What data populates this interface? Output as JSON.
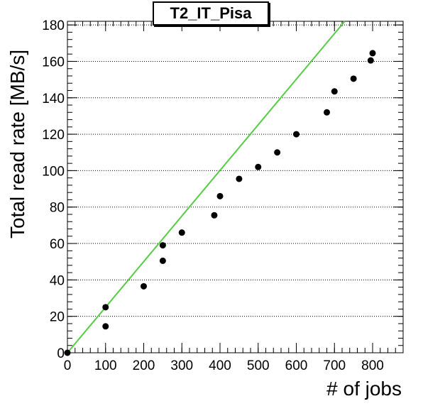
{
  "chart_data": {
    "type": "scatter",
    "title": "T2_IT_Pisa",
    "xlabel": "# of jobs",
    "ylabel": "Total read rate [MB/s]",
    "xlim": [
      0,
      880
    ],
    "ylim": [
      0,
      182
    ],
    "x_ticks": [
      0,
      100,
      200,
      300,
      400,
      500,
      600,
      700,
      800
    ],
    "y_ticks": [
      0,
      20,
      40,
      60,
      80,
      100,
      120,
      140,
      160,
      180
    ],
    "grid": "horizontal dotted",
    "series": [
      {
        "type": "scatter",
        "color": "#000000",
        "points": [
          {
            "x": 0,
            "y": 0
          },
          {
            "x": 100,
            "y": 25
          },
          {
            "x": 100,
            "y": 14.5
          },
          {
            "x": 200,
            "y": 36.5
          },
          {
            "x": 250,
            "y": 59
          },
          {
            "x": 250,
            "y": 50.5
          },
          {
            "x": 300,
            "y": 66
          },
          {
            "x": 385,
            "y": 75.5
          },
          {
            "x": 400,
            "y": 86
          },
          {
            "x": 450,
            "y": 95.5
          },
          {
            "x": 500,
            "y": 102
          },
          {
            "x": 550,
            "y": 110
          },
          {
            "x": 600,
            "y": 120
          },
          {
            "x": 680,
            "y": 132
          },
          {
            "x": 700,
            "y": 143.5
          },
          {
            "x": 750,
            "y": 150.5
          },
          {
            "x": 795,
            "y": 160.5
          },
          {
            "x": 800,
            "y": 164.5
          }
        ]
      },
      {
        "type": "line",
        "color": "#55cc44",
        "points": [
          {
            "x": 0,
            "y": 0
          },
          {
            "x": 727,
            "y": 182
          }
        ]
      }
    ]
  }
}
